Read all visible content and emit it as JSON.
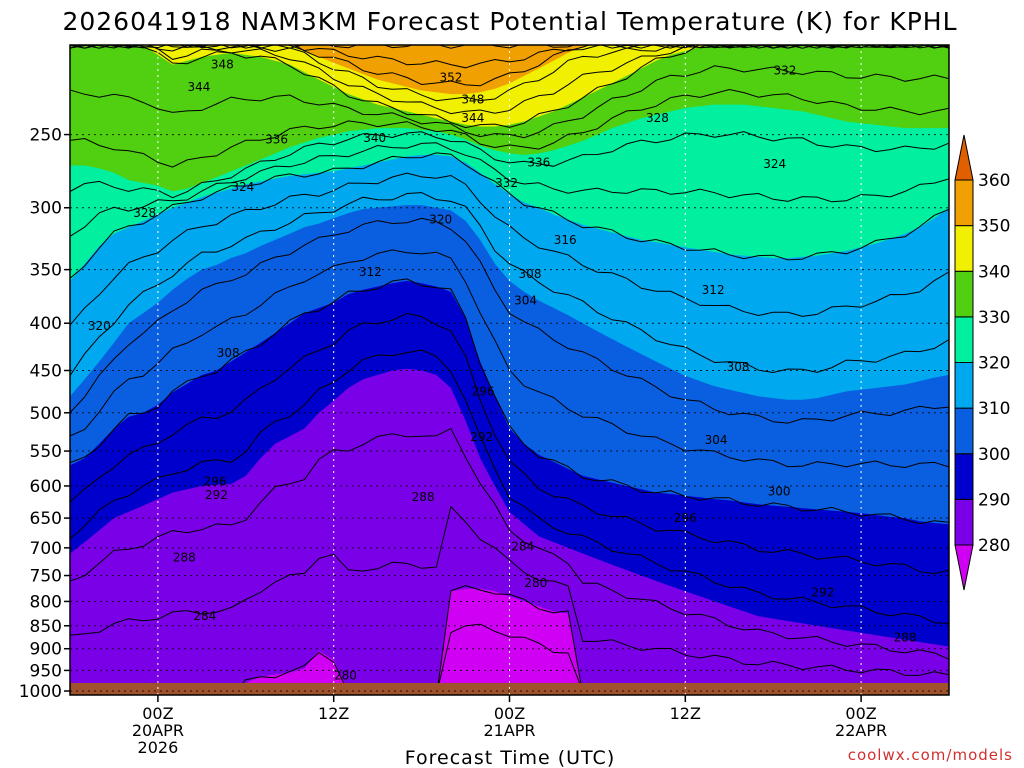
{
  "chart_data": {
    "type": "heatmap",
    "title": "2026041918 NAM3KM Forecast Potential Temperature (K) for KPHL",
    "xlabel": "Forecast Time (UTC)",
    "ylabel": "",
    "x_unit": "forecast hours from 2026-04-19 18Z",
    "xlim": [
      0,
      60
    ],
    "y_unit": "hPa",
    "ylim": [
      1010,
      200
    ],
    "y_ticks": [
      250,
      300,
      350,
      400,
      450,
      500,
      550,
      600,
      650,
      700,
      750,
      800,
      850,
      900,
      950,
      1000
    ],
    "x_ticks": [
      {
        "hour": 6,
        "lines": [
          "00Z",
          "20APR",
          "2026"
        ]
      },
      {
        "hour": 18,
        "lines": [
          "12Z"
        ]
      },
      {
        "hour": 30,
        "lines": [
          "00Z",
          "21APR"
        ]
      },
      {
        "hour": 42,
        "lines": [
          "12Z"
        ]
      },
      {
        "hour": 54,
        "lines": [
          "00Z",
          "22APR"
        ]
      }
    ],
    "colorbar": {
      "levels": [
        280,
        290,
        300,
        310,
        320,
        330,
        340,
        350,
        360
      ],
      "colors": [
        "#d000f4",
        "#7a00e8",
        "#0000cc",
        "#0a5fe0",
        "#00a8f0",
        "#00f0a0",
        "#50d010",
        "#f0f000",
        "#f0a000",
        "#e06000"
      ]
    },
    "contour_interval_K": 4,
    "contour_levels": [
      276,
      280,
      284,
      288,
      292,
      296,
      300,
      304,
      308,
      312,
      316,
      320,
      324,
      328,
      332,
      336,
      340,
      344,
      348,
      352,
      356,
      360
    ],
    "contour_labels": [
      {
        "value": 348,
        "hour": 10.4,
        "p": 210
      },
      {
        "value": 344,
        "hour": 8.8,
        "p": 222
      },
      {
        "value": 352,
        "hour": 26.0,
        "p": 217
      },
      {
        "value": 348,
        "hour": 27.5,
        "p": 229
      },
      {
        "value": 344,
        "hour": 27.5,
        "p": 240
      },
      {
        "value": 340,
        "hour": 20.8,
        "p": 252
      },
      {
        "value": 336,
        "hour": 14.1,
        "p": 253
      },
      {
        "value": 336,
        "hour": 32.0,
        "p": 268
      },
      {
        "value": 332,
        "hour": 29.8,
        "p": 282
      },
      {
        "value": 328,
        "hour": 40.1,
        "p": 240
      },
      {
        "value": 332,
        "hour": 48.8,
        "p": 213
      },
      {
        "value": 324,
        "hour": 11.8,
        "p": 285
      },
      {
        "value": 328,
        "hour": 5.1,
        "p": 304
      },
      {
        "value": 324,
        "hour": 48.1,
        "p": 269
      },
      {
        "value": 320,
        "hour": 25.3,
        "p": 309
      },
      {
        "value": 316,
        "hour": 33.8,
        "p": 325
      },
      {
        "value": 312,
        "hour": 20.5,
        "p": 352
      },
      {
        "value": 308,
        "hour": 31.4,
        "p": 354
      },
      {
        "value": 304,
        "hour": 31.1,
        "p": 378
      },
      {
        "value": 312,
        "hour": 43.9,
        "p": 368
      },
      {
        "value": 320,
        "hour": 2.0,
        "p": 403
      },
      {
        "value": 308,
        "hour": 10.8,
        "p": 431
      },
      {
        "value": 296,
        "hour": 28.2,
        "p": 474
      },
      {
        "value": 308,
        "hour": 45.6,
        "p": 446
      },
      {
        "value": 292,
        "hour": 28.1,
        "p": 531
      },
      {
        "value": 304,
        "hour": 44.1,
        "p": 535
      },
      {
        "value": 296,
        "hour": 9.9,
        "p": 593
      },
      {
        "value": 292,
        "hour": 10.0,
        "p": 614
      },
      {
        "value": 288,
        "hour": 24.1,
        "p": 617
      },
      {
        "value": 300,
        "hour": 48.4,
        "p": 608
      },
      {
        "value": 296,
        "hour": 42.0,
        "p": 650
      },
      {
        "value": 284,
        "hour": 30.9,
        "p": 698
      },
      {
        "value": 288,
        "hour": 7.8,
        "p": 717
      },
      {
        "value": 280,
        "hour": 31.8,
        "p": 764
      },
      {
        "value": 292,
        "hour": 51.4,
        "p": 782
      },
      {
        "value": 284,
        "hour": 9.2,
        "p": 830
      },
      {
        "value": 288,
        "hour": 57.0,
        "p": 875
      },
      {
        "value": 280,
        "hour": 18.8,
        "p": 962
      }
    ],
    "field_boundaries": [
      {
        "level": 280,
        "pressure_by_hour": [
          1010,
          1010,
          1010,
          1010,
          1010,
          1010,
          1010,
          1010,
          1010,
          1010,
          1010,
          1010,
          980,
          965,
          960,
          955,
          945,
          905,
          925,
          1010,
          1010,
          1010,
          1010,
          1010,
          1010,
          1010,
          780,
          775,
          775,
          780,
          790,
          800,
          810,
          820,
          825,
          1010,
          1010,
          1010,
          1010,
          1010,
          1010,
          1010,
          1010,
          1010,
          1010,
          1010,
          1010,
          1010,
          1010,
          1010,
          1010,
          1010,
          1010,
          1010,
          1010,
          1010,
          1010,
          1010,
          1010,
          1010,
          1010
        ]
      },
      {
        "level": 290,
        "pressure_by_hour": [
          710,
          690,
          670,
          650,
          640,
          630,
          620,
          610,
          605,
          600,
          598,
          597,
          585,
          560,
          540,
          530,
          520,
          500,
          485,
          470,
          460,
          455,
          450,
          448,
          450,
          455,
          470,
          510,
          560,
          600,
          640,
          660,
          680,
          690,
          700,
          710,
          720,
          730,
          740,
          750,
          760,
          770,
          780,
          790,
          800,
          810,
          820,
          830,
          835,
          840,
          845,
          850,
          855,
          860,
          865,
          870,
          875,
          880,
          885,
          890,
          895
        ]
      },
      {
        "level": 300,
        "pressure_by_hour": [
          570,
          560,
          540,
          520,
          505,
          500,
          490,
          475,
          465,
          455,
          450,
          440,
          430,
          420,
          410,
          400,
          390,
          385,
          380,
          372,
          368,
          365,
          362,
          360,
          362,
          365,
          370,
          395,
          440,
          480,
          520,
          540,
          555,
          565,
          575,
          585,
          590,
          595,
          600,
          605,
          610,
          612,
          615,
          617,
          620,
          622,
          625,
          628,
          630,
          632,
          634,
          636,
          638,
          640,
          642,
          645,
          648,
          650,
          655,
          658,
          660
        ]
      },
      {
        "level": 310,
        "pressure_by_hour": [
          480,
          460,
          440,
          420,
          400,
          390,
          380,
          368,
          358,
          350,
          346,
          340,
          336,
          330,
          325,
          320,
          315,
          312,
          308,
          304,
          301,
          300,
          299,
          298,
          298,
          300,
          302,
          310,
          325,
          345,
          360,
          370,
          378,
          385,
          392,
          400,
          408,
          416,
          424,
          432,
          440,
          448,
          456,
          462,
          468,
          472,
          476,
          480,
          482,
          484,
          484,
          482,
          478,
          474,
          472,
          470,
          468,
          466,
          462,
          458,
          455
        ]
      },
      {
        "level": 320,
        "pressure_by_hour": [
          360,
          345,
          330,
          320,
          315,
          310,
          305,
          300,
          296,
          292,
          289,
          286,
          283,
          281,
          279,
          277,
          276,
          275,
          274,
          272,
          270,
          268,
          266,
          264,
          263,
          263,
          264,
          268,
          275,
          283,
          290,
          296,
          300,
          305,
          309,
          313,
          316,
          319,
          322,
          325,
          327,
          329,
          331,
          333,
          335,
          337,
          338,
          339,
          340,
          340,
          339,
          338,
          336,
          334,
          331,
          328,
          324,
          320,
          315,
          308,
          300
        ]
      },
      {
        "level": 330,
        "pressure_by_hour": [
          270,
          270,
          272,
          275,
          280,
          282,
          284,
          288,
          286,
          282,
          278,
          274,
          270,
          266,
          262,
          258,
          255,
          252,
          250,
          248,
          247,
          246,
          246,
          246,
          247,
          248,
          250,
          253,
          257,
          260,
          262,
          263,
          262,
          260,
          257,
          254,
          250,
          246,
          243,
          240,
          238,
          236,
          234,
          233,
          232,
          232,
          232,
          233,
          234,
          235,
          236,
          238,
          240,
          242,
          243,
          244,
          245,
          246,
          246,
          246,
          246
        ]
      },
      {
        "level": 340,
        "pressure_by_hour": [
          200,
          200,
          200,
          200,
          200,
          200,
          205,
          210,
          208,
          206,
          205,
          204,
          205,
          206,
          208,
          210,
          214,
          218,
          222,
          226,
          229,
          232,
          234,
          236,
          238,
          240,
          242,
          244,
          245,
          245,
          244,
          242,
          239,
          236,
          232,
          228,
          224,
          220,
          216,
          212,
          208,
          205,
          203,
          201,
          200,
          200,
          200,
          200,
          200,
          200,
          200,
          200,
          200,
          200,
          200,
          200,
          200,
          200,
          200,
          200,
          200
        ]
      },
      {
        "level": 350,
        "pressure_by_hour": [
          200,
          200,
          200,
          200,
          200,
          200,
          200,
          200,
          200,
          200,
          200,
          200,
          200,
          200,
          200,
          200,
          203,
          206,
          209,
          212,
          215,
          218,
          220,
          222,
          224,
          225,
          226,
          226,
          225,
          223,
          220,
          216,
          212,
          208,
          204,
          201,
          200,
          200,
          200,
          200,
          200,
          200,
          200,
          200,
          200,
          200,
          200,
          200,
          200,
          200,
          200,
          200,
          200,
          200,
          200,
          200,
          200,
          200,
          200,
          200,
          200
        ]
      },
      {
        "level": 360,
        "pressure_by_hour": [
          200,
          200,
          200,
          200,
          200,
          200,
          200,
          200,
          200,
          200,
          200,
          200,
          200,
          200,
          200,
          200,
          200,
          200,
          200,
          200,
          200,
          200,
          200,
          200,
          200,
          200,
          200,
          200,
          200,
          200,
          200,
          200,
          200,
          200,
          200,
          200,
          200,
          200,
          200,
          200,
          200,
          200,
          200,
          200,
          200,
          200,
          200,
          200,
          200,
          200,
          200,
          200,
          200,
          200,
          200,
          200,
          200,
          200,
          200,
          200,
          200
        ]
      }
    ]
  },
  "credit": "coolwx.com/models"
}
